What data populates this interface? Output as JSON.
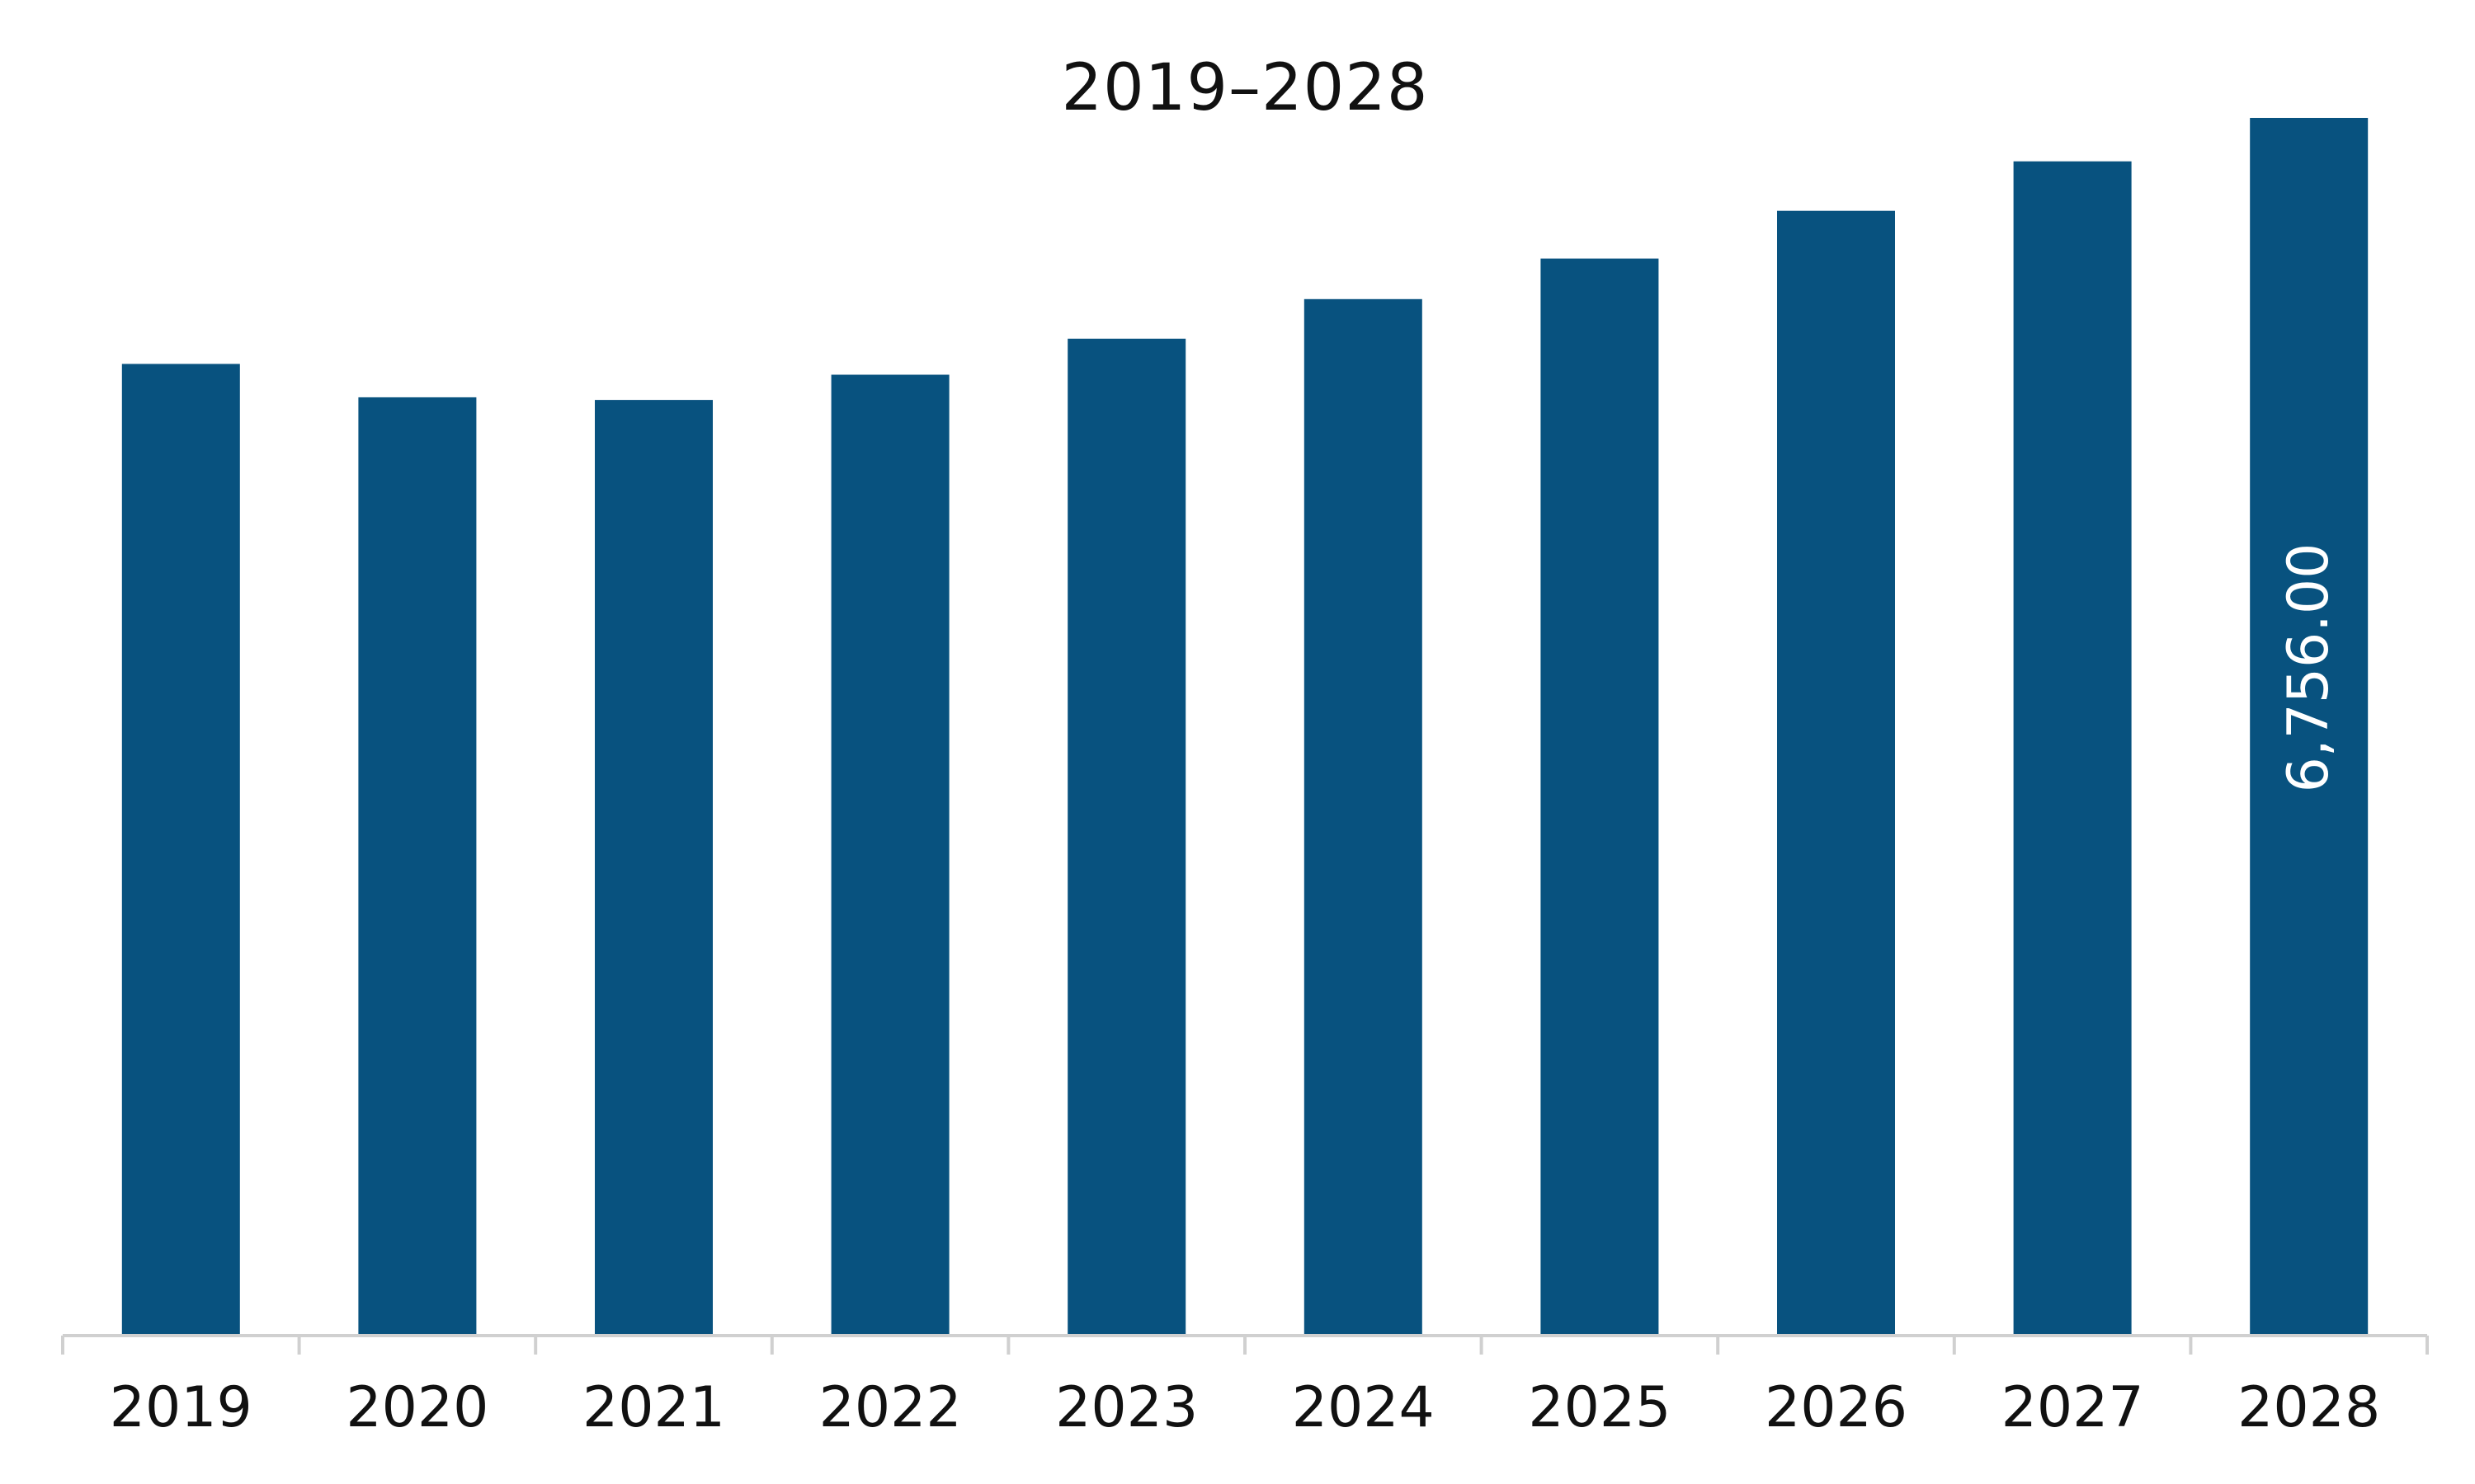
{
  "chart_data": {
    "type": "bar",
    "title": "2019–2028",
    "xlabel": "",
    "ylabel": "",
    "categories": [
      "2019",
      "2020",
      "2021",
      "2022",
      "2023",
      "2024",
      "2025",
      "2026",
      "2027",
      "2028"
    ],
    "values": [
      5390,
      5205,
      5190,
      5330,
      5530,
      5750,
      5975,
      6240,
      6515,
      6756
    ],
    "data_labels": [
      {
        "index": 9,
        "text": "6,756.00"
      }
    ],
    "ylim": [
      0,
      6756
    ],
    "grid": false,
    "legend": "none",
    "colors": {
      "bar": "#08527F",
      "axis": "#d0d0d0",
      "text": "#111111",
      "data_label": "#ffffff"
    }
  }
}
